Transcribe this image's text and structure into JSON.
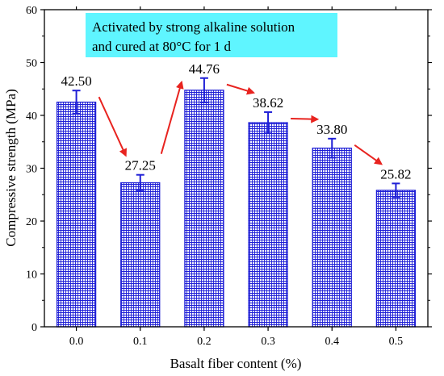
{
  "chart_data": {
    "type": "bar",
    "categories": [
      "0.0",
      "0.1",
      "0.2",
      "0.3",
      "0.4",
      "0.5"
    ],
    "values": [
      42.5,
      27.25,
      44.76,
      38.62,
      33.8,
      25.82
    ],
    "value_labels": [
      "42.50",
      "27.25",
      "44.76",
      "38.62",
      "33.80",
      "25.82"
    ],
    "errors": [
      2.2,
      1.5,
      2.3,
      2.0,
      1.8,
      1.3
    ],
    "xlabel": "Basalt fiber content (%)",
    "ylabel": "Compressive strength (MPa)",
    "ylim": [
      0,
      60
    ],
    "yticks": [
      0,
      10,
      20,
      30,
      40,
      50,
      60
    ],
    "ytick_labels": [
      "0",
      "10",
      "20",
      "30",
      "40",
      "50",
      "60"
    ],
    "grid": false,
    "bar_pattern": "grid hatch",
    "colors": {
      "bar": "#1f1fd6",
      "error_bar": "#1f1fd6",
      "arrow": "#e8231f",
      "annotation_box": "#5ff5ff"
    },
    "annotation": {
      "lines": [
        "Activated by strong alkaline solution",
        "and cured at 80°C for 1 d"
      ]
    },
    "trend_arrows": [
      {
        "from": "0.0",
        "to": "0.1",
        "direction": "down"
      },
      {
        "from": "0.1",
        "to": "0.2",
        "direction": "up"
      },
      {
        "from": "0.2",
        "to": "0.3",
        "direction": "down"
      },
      {
        "from": "0.3",
        "to": "0.4",
        "direction": "down"
      },
      {
        "from": "0.4",
        "to": "0.5",
        "direction": "down"
      }
    ]
  }
}
